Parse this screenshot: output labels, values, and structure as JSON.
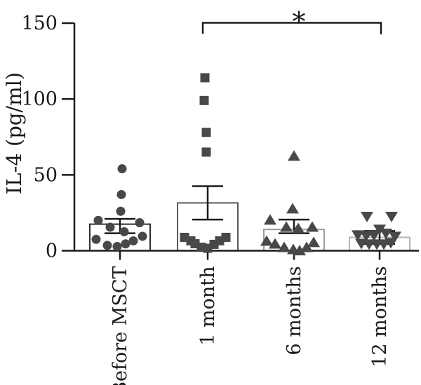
{
  "figure": {
    "kind": "dot-plot-with-bars",
    "background": "#ffffff"
  },
  "chart_data": {
    "type": "bar",
    "title": "",
    "xlabel": "",
    "ylabel": "IL-4 (pg/ml)",
    "ylim": [
      0,
      150
    ],
    "yticks": [
      0,
      50,
      100,
      150
    ],
    "grid": false,
    "legend": "none",
    "marker_color": "#484848",
    "axis_color": "#1a1a1a",
    "categories": [
      "Before MSCT",
      "1 month",
      "6 months",
      "12 months"
    ],
    "groups": [
      {
        "label": "Before MSCT",
        "marker": "circle",
        "bar_mean": 17.5,
        "err_low": 11.5,
        "err_high": 21,
        "bar_outline": "#2f2f2f",
        "points": [
          [
            54,
            3
          ],
          [
            37,
            2
          ],
          [
            26,
            1
          ],
          [
            20,
            -31
          ],
          [
            18.5,
            28
          ],
          [
            15.5,
            -14
          ],
          [
            12.5,
            6
          ],
          [
            9.5,
            32
          ],
          [
            7.5,
            -34
          ],
          [
            6.5,
            19
          ],
          [
            4.5,
            8
          ],
          [
            3.5,
            -18
          ],
          [
            2.8,
            -4
          ]
        ]
      },
      {
        "label": "1 month",
        "marker": "square",
        "bar_mean": 31.5,
        "err_low": 20.5,
        "err_high": 42.5,
        "bar_outline": "#5a5a5a",
        "points": [
          [
            114,
            -4
          ],
          [
            99,
            -5
          ],
          [
            78,
            -2
          ],
          [
            65,
            -2
          ],
          [
            8.8,
            -33
          ],
          [
            6.5,
            -24
          ],
          [
            4.6,
            -18
          ],
          [
            2.3,
            -9
          ],
          [
            1.6,
            0
          ],
          [
            4.2,
            9
          ],
          [
            6.5,
            17
          ],
          [
            8.8,
            26
          ]
        ]
      },
      {
        "label": "6 months",
        "marker": "triangle-up",
        "bar_mean": 14,
        "err_low": 11.5,
        "err_high": 20.5,
        "bar_outline": "#9c9c9c",
        "points": [
          [
            62.5,
            0
          ],
          [
            27.8,
            -2
          ],
          [
            20.4,
            -34
          ],
          [
            15.7,
            -11
          ],
          [
            14.8,
            6
          ],
          [
            15.7,
            26
          ],
          [
            6.5,
            -39
          ],
          [
            4.6,
            -27
          ],
          [
            2.3,
            -14
          ],
          [
            0.9,
            -1
          ],
          [
            0.2,
            8
          ],
          [
            2.3,
            18
          ],
          [
            5.6,
            28
          ]
        ]
      },
      {
        "label": "12 months",
        "marker": "triangle-down",
        "bar_mean": 8.8,
        "err_low": 4.5,
        "err_high": 13,
        "bar_outline": "#b3b3b3",
        "points": [
          [
            22.4,
            -18
          ],
          [
            22.4,
            17
          ],
          [
            13.9,
            0
          ],
          [
            11.3,
            9
          ],
          [
            10.2,
            -31
          ],
          [
            9.7,
            -19
          ],
          [
            10,
            -8
          ],
          [
            9.3,
            22
          ],
          [
            4.6,
            -26
          ],
          [
            4.2,
            -15
          ],
          [
            4.2,
            -4
          ],
          [
            4.2,
            6
          ],
          [
            5.1,
            16
          ]
        ]
      }
    ],
    "significance": {
      "from": "1 month",
      "to": "12 months",
      "label": "*"
    }
  }
}
